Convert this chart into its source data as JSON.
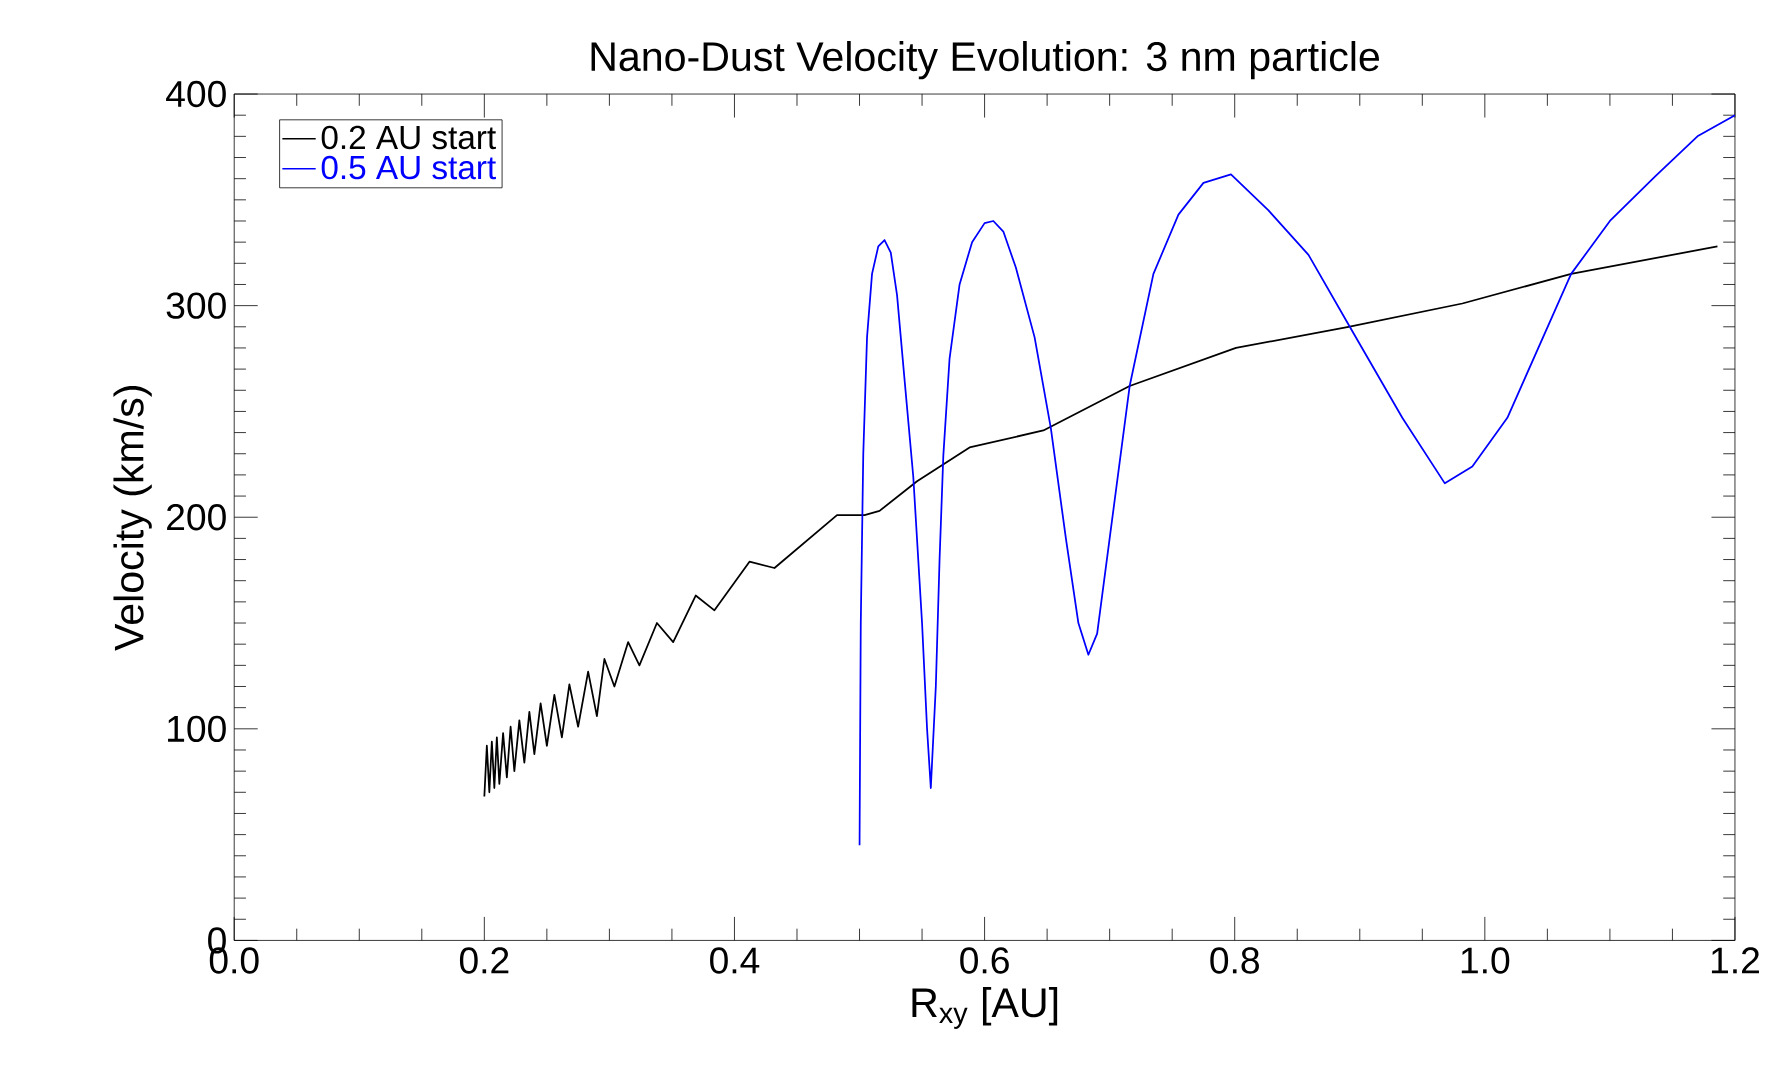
{
  "chart_data": {
    "type": "line",
    "title": "Nano-Dust Velocity Evolution: 3 nm particle",
    "xlabel": "R$_{xy}$ [AU]",
    "ylabel": "Velocity (km/s)",
    "xlim": [
      0.0,
      1.2
    ],
    "ylim": [
      0,
      400
    ],
    "xticks": [
      {
        "value": 0.0,
        "label": "0.0"
      },
      0.2,
      0.4,
      0.6,
      0.8,
      {
        "value": 1.0,
        "label": "1.0"
      },
      1.2
    ],
    "yticks": [
      0,
      100,
      200,
      300,
      400
    ],
    "legend": "top left",
    "grid": false,
    "marker": "none",
    "line_style": "solid",
    "series": [
      {
        "name": "0.2 AU start",
        "color": "#000000",
        "x": [
          0.2,
          0.202,
          0.204,
          0.206,
          0.208,
          0.21,
          0.212,
          0.215,
          0.218,
          0.221,
          0.224,
          0.228,
          0.232,
          0.236,
          0.24,
          0.245,
          0.25,
          0.256,
          0.262,
          0.268,
          0.275,
          0.283,
          0.29,
          0.296,
          0.304,
          0.315,
          0.324,
          0.338,
          0.351,
          0.369,
          0.384,
          0.412,
          0.432,
          0.482,
          0.504,
          0.516,
          0.546,
          0.588,
          0.647,
          0.716,
          0.801,
          0.891,
          0.982,
          1.069,
          1.186
        ],
        "values": [
          68,
          92,
          70,
          94,
          72,
          96,
          74,
          98,
          77,
          101,
          80,
          104,
          84,
          108,
          88,
          112,
          92,
          116,
          96,
          121,
          101,
          127,
          106,
          133,
          120,
          141,
          130,
          150,
          141,
          163,
          156,
          179,
          176,
          201,
          201,
          203,
          217,
          233,
          241,
          262,
          280,
          290,
          301,
          315,
          328
        ]
      },
      {
        "name": "0.5 AU start",
        "color": "#0000ff",
        "x": [
          0.5,
          0.501,
          0.503,
          0.506,
          0.51,
          0.515,
          0.52,
          0.525,
          0.53,
          0.536,
          0.543,
          0.55,
          0.554,
          0.557,
          0.561,
          0.564,
          0.567,
          0.572,
          0.58,
          0.59,
          0.6,
          0.607,
          0.615,
          0.625,
          0.64,
          0.653,
          0.665,
          0.675,
          0.683,
          0.69,
          0.7,
          0.716,
          0.735,
          0.755,
          0.775,
          0.797,
          0.827,
          0.859,
          0.892,
          0.934,
          0.968,
          0.99,
          1.018,
          1.069,
          1.1,
          1.136,
          1.17,
          1.2
        ],
        "values": [
          45,
          150,
          230,
          285,
          315,
          328,
          331,
          325,
          305,
          265,
          219,
          150,
          100,
          72,
          120,
          180,
          229,
          275,
          310,
          330,
          339,
          340,
          335,
          318,
          285,
          242,
          190,
          150,
          135,
          145,
          190,
          262,
          315,
          343,
          358,
          362,
          345,
          324,
          290,
          247,
          216,
          224,
          247,
          315,
          340,
          361,
          380,
          390
        ]
      }
    ]
  }
}
